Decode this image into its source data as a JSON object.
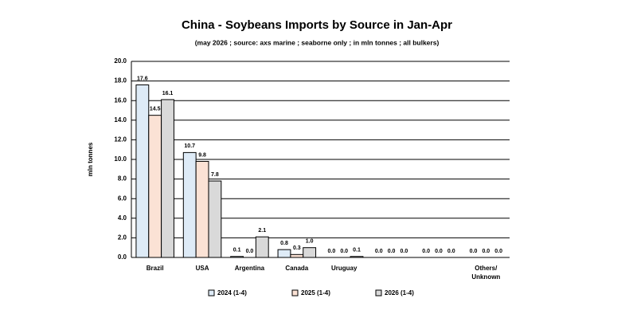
{
  "chart_data": {
    "type": "bar",
    "title": "China - Soybeans Imports by Source in Jan-Apr",
    "subtitle": "(may 2026 ; source: axs marine ; seaborne only ; in mln tonnes ; all bulkers)",
    "y_label": "mln tonnes",
    "categories": [
      "Brazil",
      "USA",
      "Argentina",
      "Canada",
      "Uruguay",
      null,
      null,
      "Others/\nUnknown"
    ],
    "series": [
      {
        "name": "2024 (1-4)",
        "color": "#deebf7",
        "values": [
          17.6,
          10.7,
          0.1,
          0.8,
          0,
          0,
          0,
          0
        ],
        "value_labels": [
          "17.6",
          "10.7",
          "0.1",
          "0.8",
          "0.0",
          "0.0",
          "0.0",
          "0.0"
        ]
      },
      {
        "name": "2025 (1-4)",
        "color": "#fbe2d5",
        "values": [
          14.5,
          9.8,
          0,
          0.3,
          0,
          0,
          0,
          0
        ],
        "value_labels": [
          "14.5",
          "9.8",
          "0.0",
          "0.3",
          "0.0",
          "0.0",
          "0.0",
          "0.0"
        ]
      },
      {
        "name": "2026 (1-4)",
        "color": "#d9d9d9",
        "values": [
          16.1,
          7.8,
          2.1,
          1.0,
          0.1,
          0,
          0,
          0
        ],
        "value_labels": [
          "16.1",
          "7.8",
          "2.1",
          "1.0",
          "0.1",
          "0.0",
          "0.0",
          "0.0"
        ]
      }
    ],
    "ylim": [
      0,
      20
    ],
    "yticks": [
      {
        "value": 0,
        "label": "0.0"
      },
      {
        "value": 2,
        "label": "2.0"
      },
      {
        "value": 4,
        "label": "4.0"
      },
      {
        "value": 6,
        "label": "6.0"
      },
      {
        "value": 8,
        "label": "8.0"
      },
      {
        "value": 10,
        "label": "10.0"
      },
      {
        "value": 12,
        "label": "12.0"
      },
      {
        "value": 14,
        "label": "14.0"
      },
      {
        "value": 16,
        "label": "16.0"
      },
      {
        "value": 18,
        "label": "18.0"
      },
      {
        "value": 20,
        "label": "20.0"
      }
    ],
    "grid": true,
    "legend": "bottom"
  }
}
